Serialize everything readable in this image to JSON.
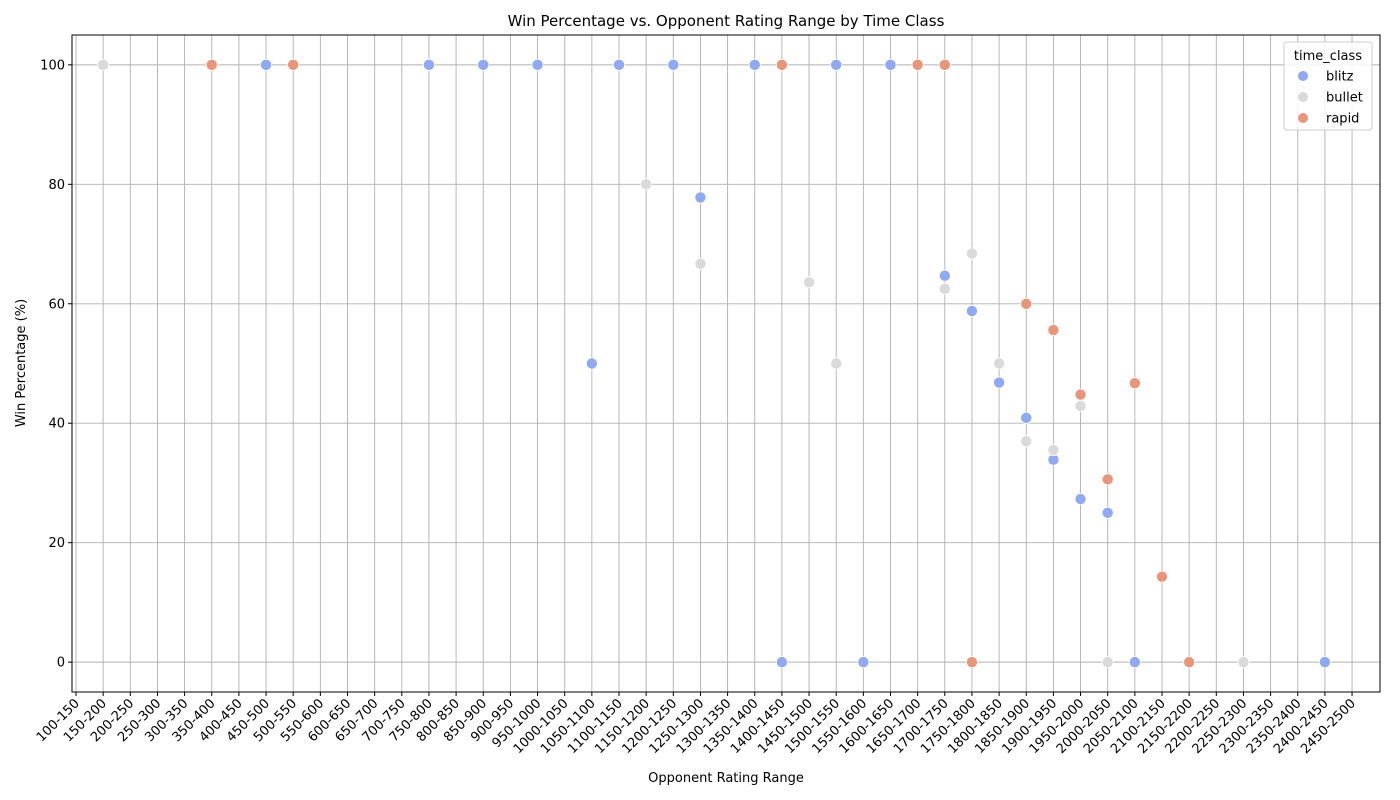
{
  "chart_data": {
    "type": "scatter",
    "title": "Win Percentage vs. Opponent Rating Range by Time Class",
    "xlabel": "Opponent Rating Range",
    "ylabel": "Win Percentage (%)",
    "categories": [
      "100-150",
      "150-200",
      "200-250",
      "250-300",
      "300-350",
      "350-400",
      "400-450",
      "450-500",
      "500-550",
      "550-600",
      "600-650",
      "650-700",
      "700-750",
      "750-800",
      "800-850",
      "850-900",
      "900-950",
      "950-1000",
      "1000-1050",
      "1050-1100",
      "1100-1150",
      "1150-1200",
      "1200-1250",
      "1250-1300",
      "1300-1350",
      "1350-1400",
      "1400-1450",
      "1450-1500",
      "1500-1550",
      "1550-1600",
      "1600-1650",
      "1650-1700",
      "1700-1750",
      "1750-1800",
      "1800-1850",
      "1850-1900",
      "1900-1950",
      "1950-2000",
      "2000-2050",
      "2050-2100",
      "2100-2150",
      "2150-2200",
      "2200-2250",
      "2250-2300",
      "2300-2350",
      "2350-2400",
      "2400-2450",
      "2450-2500"
    ],
    "yticks": [
      0,
      20,
      40,
      60,
      80,
      100
    ],
    "ylim": [
      -5,
      105
    ],
    "grid": true,
    "legend_title": "time_class",
    "legend_position": "top-right",
    "series": [
      {
        "name": "blitz",
        "color": "#8fa9f2",
        "points": [
          {
            "x": "450-500",
            "y": 100
          },
          {
            "x": "750-800",
            "y": 100
          },
          {
            "x": "850-900",
            "y": 100
          },
          {
            "x": "950-1000",
            "y": 100
          },
          {
            "x": "1050-1100",
            "y": 50
          },
          {
            "x": "1100-1150",
            "y": 100
          },
          {
            "x": "1200-1250",
            "y": 100
          },
          {
            "x": "1250-1300",
            "y": 77.8
          },
          {
            "x": "1350-1400",
            "y": 100
          },
          {
            "x": "1400-1450",
            "y": 0
          },
          {
            "x": "1500-1550",
            "y": 100
          },
          {
            "x": "1550-1600",
            "y": 0
          },
          {
            "x": "1600-1650",
            "y": 100
          },
          {
            "x": "1700-1750",
            "y": 64.7
          },
          {
            "x": "1750-1800",
            "y": 58.8
          },
          {
            "x": "1800-1850",
            "y": 46.8
          },
          {
            "x": "1850-1900",
            "y": 40.9
          },
          {
            "x": "1900-1950",
            "y": 33.9
          },
          {
            "x": "1950-2000",
            "y": 27.3
          },
          {
            "x": "2000-2050",
            "y": 25
          },
          {
            "x": "2050-2100",
            "y": 0
          },
          {
            "x": "2400-2450",
            "y": 0
          }
        ]
      },
      {
        "name": "bullet",
        "color": "#dadada",
        "points": [
          {
            "x": "150-200",
            "y": 100
          },
          {
            "x": "1150-1200",
            "y": 80
          },
          {
            "x": "1250-1300",
            "y": 66.7
          },
          {
            "x": "1450-1500",
            "y": 63.6
          },
          {
            "x": "1500-1550",
            "y": 50
          },
          {
            "x": "1700-1750",
            "y": 62.5
          },
          {
            "x": "1750-1800",
            "y": 68.4
          },
          {
            "x": "1800-1850",
            "y": 50
          },
          {
            "x": "1850-1900",
            "y": 37
          },
          {
            "x": "1900-1950",
            "y": 35.5
          },
          {
            "x": "1950-2000",
            "y": 42.9
          },
          {
            "x": "2000-2050",
            "y": 0
          },
          {
            "x": "2250-2300",
            "y": 0
          }
        ]
      },
      {
        "name": "rapid",
        "color": "#e8957a",
        "points": [
          {
            "x": "350-400",
            "y": 100
          },
          {
            "x": "500-550",
            "y": 100
          },
          {
            "x": "1400-1450",
            "y": 100
          },
          {
            "x": "1650-1700",
            "y": 100
          },
          {
            "x": "1700-1750",
            "y": 100
          },
          {
            "x": "1750-1800",
            "y": 0
          },
          {
            "x": "1850-1900",
            "y": 60
          },
          {
            "x": "1900-1950",
            "y": 55.6
          },
          {
            "x": "1950-2000",
            "y": 44.8
          },
          {
            "x": "2000-2050",
            "y": 30.6
          },
          {
            "x": "2050-2100",
            "y": 46.7
          },
          {
            "x": "2100-2150",
            "y": 14.3
          },
          {
            "x": "2150-2200",
            "y": 0
          }
        ]
      }
    ]
  }
}
